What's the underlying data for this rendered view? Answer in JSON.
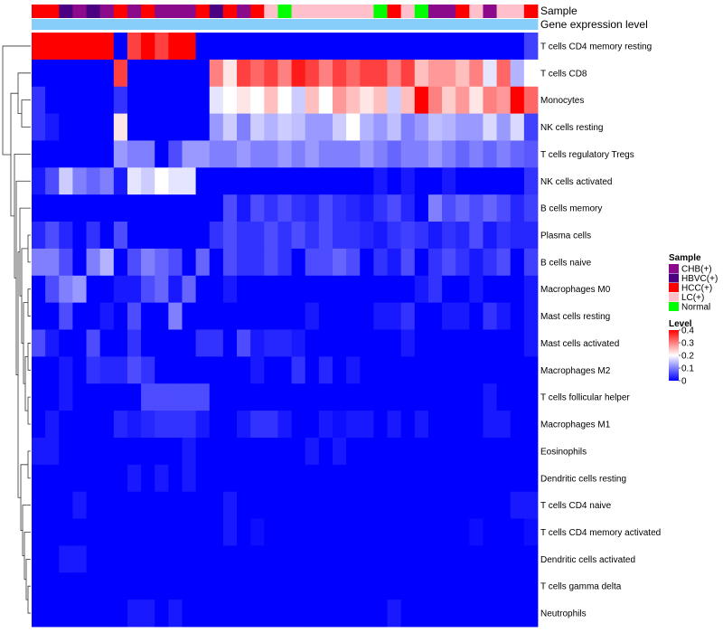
{
  "chart_data": {
    "type": "heatmap",
    "title": "",
    "annotation_rows": [
      "Sample",
      "Gene expression level"
    ],
    "rows": [
      "T cells CD4 memory resting",
      "T cells CD8",
      "Monocytes",
      "NK cells resting",
      "T cells regulatory  Tregs",
      "NK cells activated",
      "B cells memory",
      "Plasma cells",
      "B cells naive",
      "Macrophages M0",
      "Mast cells resting",
      "Mast cells activated",
      "Macrophages M2",
      "T cells follicular helper",
      "Macrophages M1",
      "Eosinophils",
      "Dendritic cells resting",
      "T cells CD4 naive",
      "T cells CD4 memory activated",
      "Dendritic cells activated",
      "T cells gamma delta",
      "Neutrophils"
    ],
    "sample_groups": [
      "HCC(+)",
      "HCC(+)",
      "HBVC(+)",
      "CHB(+)",
      "HBVC(+)",
      "CHB(+)",
      "HCC(+)",
      "CHB(+)",
      "HCC(+)",
      "CHB(+)",
      "CHB(+)",
      "CHB(+)",
      "HCC(+)",
      "HBVC(+)",
      "HCC(+)",
      "CHB(+)",
      "HCC(+)",
      "LC(+)",
      "Normal",
      "LC(+)",
      "LC(+)",
      "LC(+)",
      "LC(+)",
      "LC(+)",
      "LC(+)",
      "Normal",
      "HCC(+)",
      "LC(+)",
      "Normal",
      "CHB(+)",
      "CHB(+)",
      "HCC(+)",
      "LC(+)",
      "CHB(+)",
      "LC(+)",
      "LC(+)",
      "HCC(+)"
    ],
    "expression_level": [
      0.05,
      0.05,
      0.05,
      0.05,
      0.05,
      0.05,
      0.05,
      0.05,
      0.05,
      0.05,
      0.05,
      0.05,
      0.05,
      0.05,
      0.05,
      0.05,
      0.05,
      0.05,
      0.05,
      0.05,
      0.05,
      0.05,
      0.05,
      0.05,
      0.05,
      0.05,
      0.05,
      0.05,
      0.05,
      0.05,
      0.05,
      0.05,
      0.05,
      0.05,
      0.05,
      0.05,
      0.05
    ],
    "values": [
      [
        0.4,
        0.4,
        0.4,
        0.4,
        0.4,
        0.4,
        0.0,
        0.35,
        0.4,
        0.35,
        0.4,
        0.4,
        0.0,
        0.0,
        0.0,
        0.0,
        0.0,
        0.0,
        0.0,
        0.0,
        0.0,
        0.0,
        0.0,
        0.0,
        0.0,
        0.0,
        0.0,
        0.0,
        0.0,
        0.0,
        0.0,
        0.0,
        0.0,
        0.0,
        0.0,
        0.0,
        0.05
      ],
      [
        0.0,
        0.0,
        0.0,
        0.0,
        0.0,
        0.0,
        0.35,
        0.0,
        0.0,
        0.0,
        0.0,
        0.0,
        0.0,
        0.3,
        0.22,
        0.35,
        0.32,
        0.35,
        0.3,
        0.38,
        0.35,
        0.3,
        0.35,
        0.32,
        0.35,
        0.35,
        0.3,
        0.35,
        0.25,
        0.28,
        0.28,
        0.25,
        0.3,
        0.18,
        0.32,
        0.14,
        0.2
      ],
      [
        0.04,
        0.0,
        0.0,
        0.0,
        0.0,
        0.0,
        0.04,
        0.0,
        0.0,
        0.0,
        0.0,
        0.0,
        0.0,
        0.18,
        0.2,
        0.22,
        0.2,
        0.25,
        0.2,
        0.16,
        0.25,
        0.2,
        0.28,
        0.25,
        0.22,
        0.25,
        0.16,
        0.25,
        0.4,
        0.3,
        0.24,
        0.28,
        0.22,
        0.3,
        0.28,
        0.4,
        0.32
      ],
      [
        0.04,
        0.02,
        0.0,
        0.0,
        0.0,
        0.0,
        0.22,
        0.0,
        0.0,
        0.0,
        0.0,
        0.0,
        0.0,
        0.12,
        0.16,
        0.1,
        0.16,
        0.14,
        0.16,
        0.15,
        0.12,
        0.12,
        0.16,
        0.2,
        0.14,
        0.12,
        0.15,
        0.1,
        0.12,
        0.15,
        0.14,
        0.12,
        0.12,
        0.17,
        0.12,
        0.17,
        0.05
      ],
      [
        0.0,
        0.0,
        0.0,
        0.0,
        0.0,
        0.0,
        0.12,
        0.1,
        0.1,
        0.0,
        0.06,
        0.12,
        0.12,
        0.1,
        0.1,
        0.12,
        0.1,
        0.1,
        0.12,
        0.1,
        0.12,
        0.1,
        0.1,
        0.1,
        0.12,
        0.1,
        0.08,
        0.1,
        0.1,
        0.12,
        0.1,
        0.08,
        0.1,
        0.08,
        0.1,
        0.08,
        0.07
      ],
      [
        0.02,
        0.06,
        0.16,
        0.1,
        0.08,
        0.1,
        0.02,
        0.18,
        0.16,
        0.2,
        0.18,
        0.18,
        0.0,
        0.0,
        0.0,
        0.0,
        0.0,
        0.0,
        0.0,
        0.0,
        0.0,
        0.0,
        0.0,
        0.0,
        0.0,
        0.02,
        0.0,
        0.02,
        0.0,
        0.0,
        0.02,
        0.0,
        0.0,
        0.0,
        0.0,
        0.0,
        0.04
      ],
      [
        0.0,
        0.0,
        0.0,
        0.0,
        0.0,
        0.0,
        0.0,
        0.0,
        0.0,
        0.0,
        0.0,
        0.0,
        0.0,
        0.0,
        0.06,
        0.02,
        0.06,
        0.04,
        0.06,
        0.04,
        0.03,
        0.06,
        0.04,
        0.03,
        0.02,
        0.04,
        0.06,
        0.03,
        0.0,
        0.1,
        0.06,
        0.08,
        0.06,
        0.08,
        0.06,
        0.03,
        0.05
      ],
      [
        0.03,
        0.06,
        0.03,
        0.0,
        0.04,
        0.0,
        0.06,
        0.0,
        0.0,
        0.0,
        0.0,
        0.0,
        0.0,
        0.04,
        0.06,
        0.04,
        0.04,
        0.06,
        0.04,
        0.06,
        0.04,
        0.06,
        0.04,
        0.04,
        0.03,
        0.02,
        0.04,
        0.05,
        0.04,
        0.02,
        0.04,
        0.03,
        0.06,
        0.02,
        0.04,
        0.03,
        0.03
      ],
      [
        0.1,
        0.1,
        0.06,
        0.0,
        0.1,
        0.14,
        0.0,
        0.06,
        0.1,
        0.08,
        0.06,
        0.0,
        0.08,
        0.0,
        0.06,
        0.04,
        0.04,
        0.06,
        0.04,
        0.0,
        0.06,
        0.06,
        0.08,
        0.06,
        0.0,
        0.04,
        0.02,
        0.06,
        0.0,
        0.04,
        0.06,
        0.04,
        0.02,
        0.04,
        0.06,
        0.0,
        0.05
      ],
      [
        0.0,
        0.06,
        0.1,
        0.12,
        0.0,
        0.0,
        0.02,
        0.02,
        0.06,
        0.08,
        0.02,
        0.08,
        0.0,
        0.0,
        0.02,
        0.0,
        0.0,
        0.0,
        0.0,
        0.0,
        0.0,
        0.0,
        0.0,
        0.0,
        0.0,
        0.0,
        0.0,
        0.0,
        0.02,
        0.04,
        0.0,
        0.0,
        0.02,
        0.0,
        0.0,
        0.0,
        0.02
      ],
      [
        0.0,
        0.0,
        0.06,
        0.0,
        0.0,
        0.02,
        0.0,
        0.06,
        0.0,
        0.0,
        0.1,
        0.0,
        0.0,
        0.0,
        0.0,
        0.0,
        0.0,
        0.0,
        0.0,
        0.0,
        0.02,
        0.0,
        0.0,
        0.0,
        0.0,
        0.02,
        0.02,
        0.04,
        0.0,
        0.0,
        0.02,
        0.02,
        0.0,
        0.04,
        0.02,
        0.0,
        0.02
      ],
      [
        0.06,
        0.02,
        0.0,
        0.0,
        0.06,
        0.0,
        0.0,
        0.04,
        0.0,
        0.0,
        0.0,
        0.0,
        0.04,
        0.04,
        0.0,
        0.06,
        0.02,
        0.03,
        0.03,
        0.02,
        0.0,
        0.0,
        0.0,
        0.0,
        0.0,
        0.0,
        0.0,
        0.02,
        0.0,
        0.0,
        0.0,
        0.0,
        0.0,
        0.0,
        0.0,
        0.0,
        0.02
      ],
      [
        0.0,
        0.0,
        0.02,
        0.0,
        0.04,
        0.03,
        0.03,
        0.06,
        0.04,
        0.0,
        0.0,
        0.0,
        0.0,
        0.0,
        0.0,
        0.0,
        0.02,
        0.0,
        0.0,
        0.04,
        0.0,
        0.03,
        0.0,
        0.02,
        0.0,
        0.0,
        0.0,
        0.0,
        0.0,
        0.0,
        0.0,
        0.0,
        0.0,
        0.0,
        0.0,
        0.0,
        0.0
      ],
      [
        0.0,
        0.0,
        0.02,
        0.0,
        0.0,
        0.0,
        0.0,
        0.0,
        0.06,
        0.06,
        0.06,
        0.06,
        0.06,
        0.0,
        0.0,
        0.0,
        0.0,
        0.0,
        0.0,
        0.0,
        0.0,
        0.0,
        0.0,
        0.0,
        0.0,
        0.0,
        0.0,
        0.0,
        0.0,
        0.0,
        0.0,
        0.0,
        0.0,
        0.02,
        0.0,
        0.0,
        0.0
      ],
      [
        0.0,
        0.02,
        0.0,
        0.0,
        0.0,
        0.0,
        0.03,
        0.02,
        0.03,
        0.04,
        0.04,
        0.04,
        0.02,
        0.0,
        0.0,
        0.02,
        0.04,
        0.04,
        0.02,
        0.0,
        0.0,
        0.02,
        0.01,
        0.02,
        0.02,
        0.0,
        0.02,
        0.0,
        0.02,
        0.0,
        0.0,
        0.0,
        0.0,
        0.02,
        0.02,
        0.0,
        0.0
      ],
      [
        0.02,
        0.02,
        0.0,
        0.0,
        0.0,
        0.0,
        0.0,
        0.0,
        0.0,
        0.0,
        0.0,
        0.02,
        0.0,
        0.0,
        0.0,
        0.0,
        0.0,
        0.0,
        0.0,
        0.0,
        0.02,
        0.0,
        0.02,
        0.0,
        0.0,
        0.0,
        0.0,
        0.0,
        0.0,
        0.0,
        0.0,
        0.0,
        0.0,
        0.0,
        0.0,
        0.0,
        0.0
      ],
      [
        0.0,
        0.0,
        0.0,
        0.0,
        0.0,
        0.0,
        0.0,
        0.02,
        0.0,
        0.02,
        0.0,
        0.02,
        0.0,
        0.0,
        0.0,
        0.0,
        0.0,
        0.0,
        0.0,
        0.0,
        0.0,
        0.0,
        0.0,
        0.0,
        0.0,
        0.0,
        0.0,
        0.0,
        0.0,
        0.0,
        0.0,
        0.0,
        0.0,
        0.0,
        0.0,
        0.0,
        0.0
      ],
      [
        0.0,
        0.0,
        0.0,
        0.02,
        0.0,
        0.0,
        0.0,
        0.0,
        0.0,
        0.0,
        0.0,
        0.0,
        0.0,
        0.0,
        0.02,
        0.0,
        0.0,
        0.0,
        0.0,
        0.0,
        0.0,
        0.0,
        0.0,
        0.0,
        0.0,
        0.0,
        0.0,
        0.0,
        0.0,
        0.0,
        0.0,
        0.0,
        0.0,
        0.0,
        0.0,
        0.02,
        0.02
      ],
      [
        0.0,
        0.0,
        0.0,
        0.0,
        0.0,
        0.0,
        0.0,
        0.0,
        0.0,
        0.0,
        0.0,
        0.0,
        0.0,
        0.0,
        0.02,
        0.0,
        0.01,
        0.0,
        0.0,
        0.0,
        0.0,
        0.0,
        0.0,
        0.0,
        0.0,
        0.0,
        0.0,
        0.0,
        0.0,
        0.0,
        0.0,
        0.0,
        0.01,
        0.0,
        0.0,
        0.0,
        0.01
      ],
      [
        0.0,
        0.0,
        0.02,
        0.02,
        0.0,
        0.0,
        0.0,
        0.0,
        0.0,
        0.0,
        0.0,
        0.0,
        0.0,
        0.0,
        0.0,
        0.0,
        0.0,
        0.0,
        0.0,
        0.0,
        0.0,
        0.0,
        0.0,
        0.0,
        0.0,
        0.0,
        0.0,
        0.0,
        0.0,
        0.0,
        0.0,
        0.0,
        0.0,
        0.0,
        0.0,
        0.0,
        0.0
      ],
      [
        0.0,
        0.0,
        0.0,
        0.0,
        0.0,
        0.0,
        0.0,
        0.0,
        0.0,
        0.0,
        0.0,
        0.0,
        0.0,
        0.0,
        0.0,
        0.0,
        0.0,
        0.0,
        0.0,
        0.0,
        0.0,
        0.0,
        0.0,
        0.0,
        0.0,
        0.0,
        0.0,
        0.0,
        0.0,
        0.0,
        0.0,
        0.0,
        0.0,
        0.0,
        0.0,
        0.0,
        0.0
      ],
      [
        0.0,
        0.0,
        0.0,
        0.0,
        0.0,
        0.0,
        0.0,
        0.02,
        0.02,
        0.0,
        0.02,
        0.0,
        0.0,
        0.0,
        0.0,
        0.0,
        0.0,
        0.0,
        0.0,
        0.0,
        0.0,
        0.0,
        0.0,
        0.0,
        0.0,
        0.0,
        0.02,
        0.0,
        0.0,
        0.0,
        0.0,
        0.0,
        0.0,
        0.0,
        0.0,
        0.0,
        0.0
      ]
    ],
    "scale": {
      "min": 0,
      "max": 0.4
    },
    "legend": {
      "sample_title": "Sample",
      "sample_entries": [
        {
          "label": "CHB(+)",
          "color": "#8B0A8B"
        },
        {
          "label": "HBVC(+)",
          "color": "#4B0082"
        },
        {
          "label": "HCC(+)",
          "color": "#FF0000"
        },
        {
          "label": "LC(+)",
          "color": "#FFC0CB"
        },
        {
          "label": "Normal",
          "color": "#00FF00"
        }
      ],
      "level_title": "Level",
      "level_ticks": [
        "0.4",
        "0.3",
        "0.2",
        "0.1",
        "0"
      ],
      "level_tick_values": [
        0.4,
        0.3,
        0.2,
        0.1,
        0
      ]
    },
    "colors": {
      "low": "#0000FF",
      "mid": "#FFFFFF",
      "high": "#FF0000",
      "expression": "#87CEFA"
    }
  }
}
